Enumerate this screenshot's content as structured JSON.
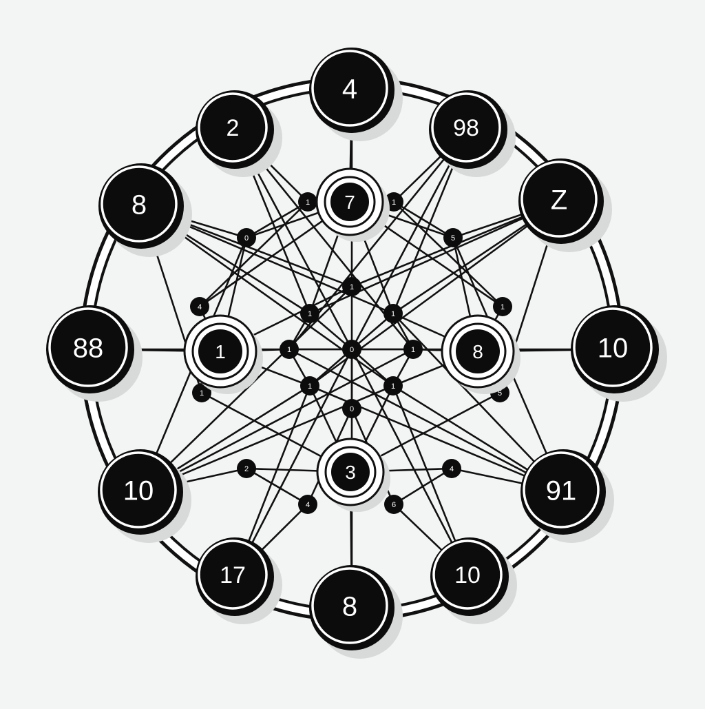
{
  "diagram": {
    "title": "",
    "colors": {
      "background": "#f3f4f4",
      "stroke": "#111111",
      "node_fill": "#0c0c0c",
      "node_text": "#ffffff",
      "halo": "#ffffff",
      "shadow": "#d8d9d9"
    },
    "outer_nodes": [
      {
        "id": "o_top",
        "label": "4"
      },
      {
        "id": "o_tr",
        "label": "98"
      },
      {
        "id": "o_rt",
        "label": "Z"
      },
      {
        "id": "o_right",
        "label": "10"
      },
      {
        "id": "o_rb",
        "label": "91"
      },
      {
        "id": "o_br",
        "label": "10"
      },
      {
        "id": "o_bottom",
        "label": "8"
      },
      {
        "id": "o_bl",
        "label": "17"
      },
      {
        "id": "o_lb",
        "label": "10"
      },
      {
        "id": "o_left",
        "label": "88"
      },
      {
        "id": "o_lt",
        "label": "8"
      },
      {
        "id": "o_tl",
        "label": "2"
      }
    ],
    "hub_nodes": [
      {
        "id": "h_top",
        "label": "7"
      },
      {
        "id": "h_left",
        "label": "1"
      },
      {
        "id": "h_right",
        "label": "8"
      },
      {
        "id": "h_bottom",
        "label": "3"
      }
    ],
    "small_nodes": [
      {
        "id": "s1",
        "label": "1"
      },
      {
        "id": "s2",
        "label": "1"
      },
      {
        "id": "s3",
        "label": "0"
      },
      {
        "id": "s4",
        "label": "5"
      },
      {
        "id": "s5",
        "label": "4"
      },
      {
        "id": "s6",
        "label": "1"
      },
      {
        "id": "s7",
        "label": "1"
      },
      {
        "id": "s8",
        "label": "1"
      },
      {
        "id": "s9",
        "label": "1"
      },
      {
        "id": "s10",
        "label": "1"
      },
      {
        "id": "s11",
        "label": "0"
      },
      {
        "id": "s12",
        "label": "1"
      },
      {
        "id": "s13",
        "label": "1"
      },
      {
        "id": "s14",
        "label": "5"
      },
      {
        "id": "s15",
        "label": "1"
      },
      {
        "id": "s16",
        "label": "1"
      },
      {
        "id": "s17",
        "label": "0"
      },
      {
        "id": "s18",
        "label": "2"
      },
      {
        "id": "s19",
        "label": "4"
      },
      {
        "id": "s20",
        "label": "4"
      },
      {
        "id": "s21",
        "label": "6"
      }
    ],
    "edges": [
      [
        "o_top",
        "h_top"
      ],
      [
        "o_bottom",
        "h_bottom"
      ],
      [
        "o_left",
        "h_left"
      ],
      [
        "o_right",
        "h_right"
      ],
      [
        "h_top",
        "s3"
      ],
      [
        "h_top",
        "s4"
      ],
      [
        "h_top",
        "s8"
      ],
      [
        "h_top",
        "s9"
      ],
      [
        "h_top",
        "s5"
      ],
      [
        "h_top",
        "s6"
      ],
      [
        "h_bottom",
        "s18"
      ],
      [
        "h_bottom",
        "s19"
      ],
      [
        "h_bottom",
        "s15"
      ],
      [
        "h_bottom",
        "s16"
      ],
      [
        "h_bottom",
        "s13"
      ],
      [
        "h_bottom",
        "s14"
      ],
      [
        "h_left",
        "s5"
      ],
      [
        "h_left",
        "s13"
      ],
      [
        "h_left",
        "s10"
      ],
      [
        "h_left",
        "s7"
      ],
      [
        "h_left",
        "s15"
      ],
      [
        "h_left",
        "s3"
      ],
      [
        "h_right",
        "s6"
      ],
      [
        "h_right",
        "s14"
      ],
      [
        "h_right",
        "s12"
      ],
      [
        "h_right",
        "s9"
      ],
      [
        "h_right",
        "s16"
      ],
      [
        "h_right",
        "s4"
      ],
      [
        "o_tl",
        "s1"
      ],
      [
        "o_tl",
        "s8"
      ],
      [
        "o_tl",
        "s11"
      ],
      [
        "o_tl",
        "s12"
      ],
      [
        "o_tr",
        "s2"
      ],
      [
        "o_tr",
        "s9"
      ],
      [
        "o_tr",
        "s11"
      ],
      [
        "o_tr",
        "s10"
      ],
      [
        "o_lt",
        "s3"
      ],
      [
        "o_lt",
        "s7"
      ],
      [
        "o_lt",
        "s8"
      ],
      [
        "o_lt",
        "s16"
      ],
      [
        "o_lt",
        "s13"
      ],
      [
        "o_lt",
        "s9"
      ],
      [
        "o_rt",
        "s4"
      ],
      [
        "o_rt",
        "s9"
      ],
      [
        "o_rt",
        "s8"
      ],
      [
        "o_rt",
        "s15"
      ],
      [
        "o_rt",
        "s14"
      ],
      [
        "o_rt",
        "s7"
      ],
      [
        "o_lb",
        "s18"
      ],
      [
        "o_lb",
        "s15"
      ],
      [
        "o_lb",
        "s16"
      ],
      [
        "o_lb",
        "s3"
      ],
      [
        "o_lb",
        "s7"
      ],
      [
        "o_lb",
        "s12"
      ],
      [
        "o_rb",
        "s19"
      ],
      [
        "o_rb",
        "s16"
      ],
      [
        "o_rb",
        "s15"
      ],
      [
        "o_rb",
        "s4"
      ],
      [
        "o_rb",
        "s9"
      ],
      [
        "o_rb",
        "s10"
      ],
      [
        "o_bl",
        "s20"
      ],
      [
        "o_bl",
        "s15"
      ],
      [
        "o_bl",
        "s11"
      ],
      [
        "o_br",
        "s21"
      ],
      [
        "o_br",
        "s16"
      ],
      [
        "o_br",
        "s11"
      ],
      [
        "s1",
        "s3"
      ],
      [
        "s2",
        "s4"
      ],
      [
        "s8",
        "s10"
      ],
      [
        "s9",
        "s12"
      ],
      [
        "s15",
        "s10"
      ],
      [
        "s16",
        "s12"
      ],
      [
        "s8",
        "s11"
      ],
      [
        "s9",
        "s11"
      ],
      [
        "s15",
        "s11"
      ],
      [
        "s16",
        "s11"
      ],
      [
        "s11",
        "s17"
      ],
      [
        "s11",
        "s10"
      ],
      [
        "s11",
        "s12"
      ],
      [
        "s17",
        "s20"
      ],
      [
        "s17",
        "s21"
      ],
      [
        "s20",
        "s18"
      ],
      [
        "s21",
        "s19"
      ],
      [
        "s1",
        "s5"
      ],
      [
        "s2",
        "s6"
      ]
    ]
  }
}
